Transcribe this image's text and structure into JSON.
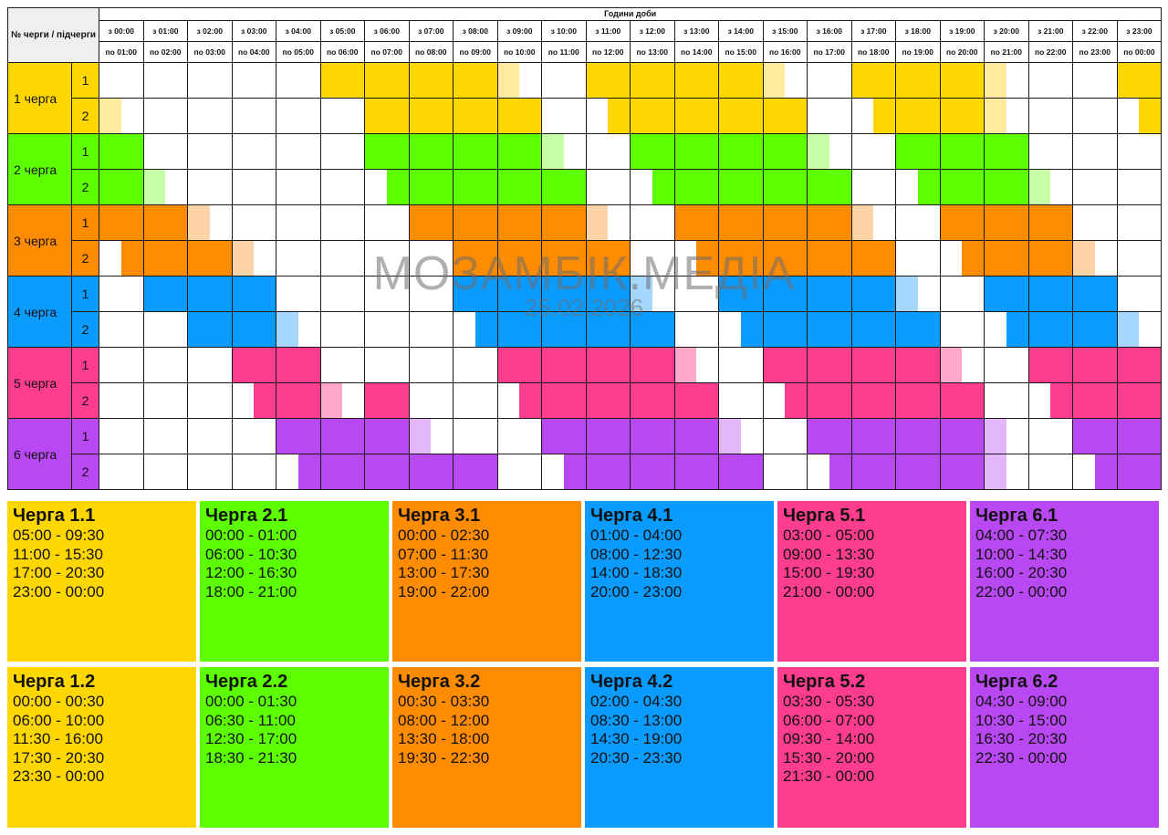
{
  "table": {
    "corner_label": "№ черги / підчерги",
    "hours_title": "Години доби",
    "from_labels": [
      "з 00:00",
      "з 01:00",
      "з 02:00",
      "з 03:00",
      "з 04:00",
      "з 05:00",
      "з 06:00",
      "з 07:00",
      "з 08:00",
      "з 09:00",
      "з 10:00",
      "з 11:00",
      "з 12:00",
      "з 13:00",
      "з 14:00",
      "з 15:00",
      "з 16:00",
      "з 17:00",
      "з 18:00",
      "з 19:00",
      "з 20:00",
      "з 21:00",
      "з 22:00",
      "з 23:00"
    ],
    "to_labels": [
      "по 01:00",
      "по 02:00",
      "по 03:00",
      "по 04:00",
      "по 05:00",
      "по 06:00",
      "по 07:00",
      "по 08:00",
      "по 09:00",
      "по 10:00",
      "по 11:00",
      "по 12:00",
      "по 13:00",
      "по 14:00",
      "по 15:00",
      "по 16:00",
      "по 17:00",
      "по 18:00",
      "по 19:00",
      "по 20:00",
      "по 21:00",
      "по 22:00",
      "по 23:00",
      "по 00:00"
    ]
  },
  "queues": [
    {
      "label": "1 черга",
      "color": "#ffd700",
      "light": "#ffeaa0",
      "subqueues": [
        {
          "label": "1",
          "pattern": "0000000000111111111011111111111111111111000000111111111111111000000000000000011111111111111111111111111110000000000000000111111111111111111111111111111111110001111111111111111111000000000000000000000000000000000000000000000000011111111111111111"
        },
        {
          "label": "2",
          "pattern": ""
        }
      ]
    },
    {
      "label": "2 черга",
      "color": "#5dff00",
      "light": "#c6ffa6",
      "subqueues": [
        {
          "label": "1",
          "pattern": ""
        },
        {
          "label": "2",
          "pattern": ""
        }
      ]
    },
    {
      "label": "3 черга",
      "color": "#ff8c00",
      "light": "#ffd3a8",
      "subqueues": [
        {
          "label": "1",
          "pattern": ""
        },
        {
          "label": "2",
          "pattern": ""
        }
      ]
    },
    {
      "label": "4 черга",
      "color": "#0a9bff",
      "light": "#a6d8ff",
      "subqueues": [
        {
          "label": "1",
          "pattern": ""
        },
        {
          "label": "2",
          "pattern": ""
        }
      ]
    },
    {
      "label": "5 черга",
      "color": "#ff3d8e",
      "light": "#ffa8cc",
      "subqueues": [
        {
          "label": "1",
          "pattern": ""
        },
        {
          "label": "2",
          "pattern": ""
        }
      ]
    },
    {
      "label": "6 черга",
      "color": "#b848f2",
      "light": "#e2b6f8",
      "subqueues": [
        {
          "label": "1",
          "pattern": ""
        },
        {
          "label": "2",
          "pattern": ""
        }
      ]
    }
  ],
  "watermark": {
    "name": "МОЗАМБІК.МЕДІА",
    "date": "25.02.2026"
  },
  "cards": [
    {
      "title": "Черга 1.1",
      "color": "#ffd700",
      "slots": [
        "05:00 - 09:30",
        "11:00 - 15:30",
        "17:00 - 20:30",
        "23:00 - 00:00"
      ]
    },
    {
      "title": "Черга 2.1",
      "color": "#5dff00",
      "slots": [
        "00:00 - 01:00",
        "06:00 - 10:30",
        "12:00 - 16:30",
        "18:00 - 21:00"
      ]
    },
    {
      "title": "Черга 3.1",
      "color": "#ff8c00",
      "slots": [
        "00:00 - 02:30",
        "07:00 - 11:30",
        "13:00 - 17:30",
        "19:00 - 22:00"
      ]
    },
    {
      "title": "Черга 4.1",
      "color": "#0a9bff",
      "slots": [
        "01:00 - 04:00",
        "08:00 - 12:30",
        "14:00 - 18:30",
        "20:00 - 23:00"
      ]
    },
    {
      "title": "Черга 5.1",
      "color": "#ff3d8e",
      "slots": [
        "03:00 - 05:00",
        "09:00 - 13:30",
        "15:00 - 19:30",
        "21:00 - 00:00"
      ]
    },
    {
      "title": "Черга 6.1",
      "color": "#b848f2",
      "slots": [
        "04:00 - 07:30",
        "10:00 - 14:30",
        "16:00 - 20:30",
        "22:00 - 00:00"
      ]
    },
    {
      "title": "Черга 1.2",
      "color": "#ffd700",
      "slots": [
        "00:00 - 00:30",
        "06:00 - 10:00",
        "11:30 - 16:00",
        "17:30 - 20:30",
        "23:30 - 00:00"
      ]
    },
    {
      "title": "Черга 2.2",
      "color": "#5dff00",
      "slots": [
        "00:00 - 01:30",
        "06:30 - 11:00",
        "12:30 - 17:00",
        "18:30 - 21:30"
      ]
    },
    {
      "title": "Черга 3.2",
      "color": "#ff8c00",
      "slots": [
        "00:30 - 03:30",
        "08:00 - 12:00",
        "13:30 - 18:00",
        "19:30 - 22:30"
      ]
    },
    {
      "title": "Черга 4.2",
      "color": "#0a9bff",
      "slots": [
        "02:00 - 04:30",
        "08:30 - 13:00",
        "14:30 - 19:00",
        "20:30 - 23:30"
      ]
    },
    {
      "title": "Черга 5.2",
      "color": "#ff3d8e",
      "slots": [
        "03:30 - 05:30",
        "06:00 - 07:00",
        "09:30 - 14:00",
        "15:30 - 20:00",
        "21:30 - 00:00"
      ]
    },
    {
      "title": "Черга 6.2",
      "color": "#b848f2",
      "slots": [
        "04:30 - 09:00",
        "10:30 - 15:00",
        "16:30 - 20:30",
        "22:30 - 00:00"
      ]
    }
  ]
}
